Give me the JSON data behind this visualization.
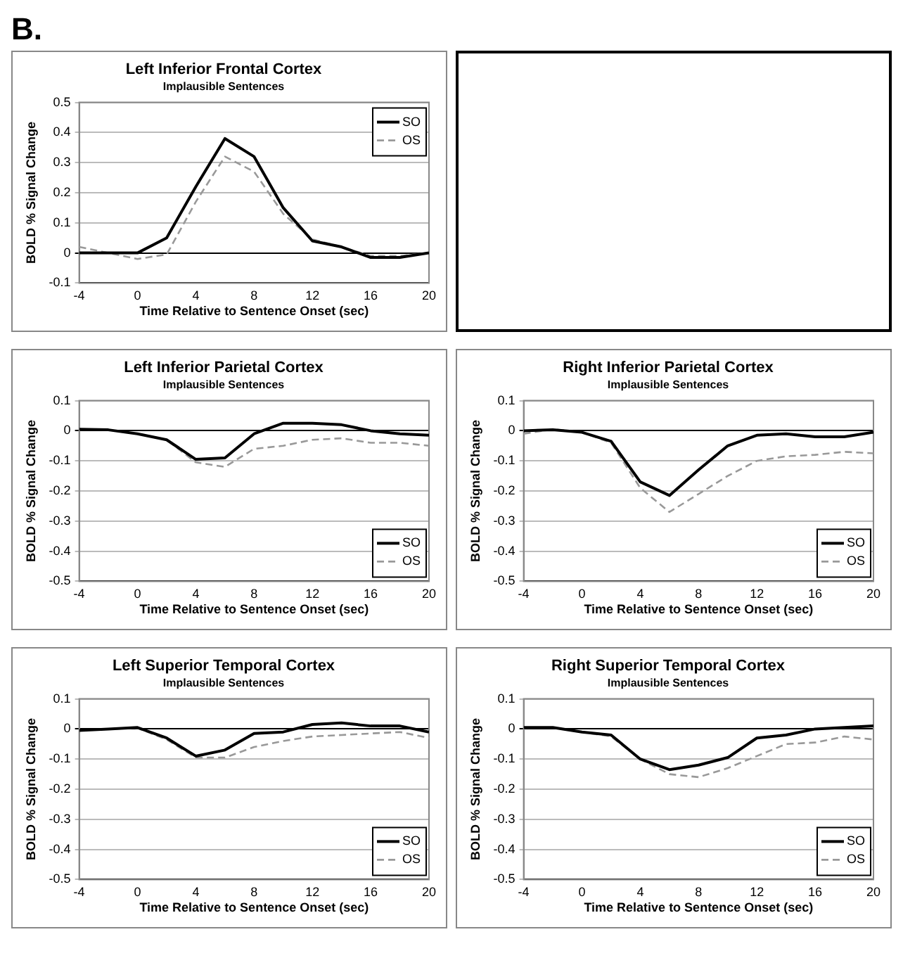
{
  "chart_data": [
    {
      "type": "line",
      "title": "Left Inferior Frontal Cortex",
      "subtitle": "Implausible Sentences",
      "xlabel": "Time Relative to Sentence Onset (sec)",
      "ylabel": "BOLD % Signal Change",
      "annotations": [
        "B."
      ],
      "x": [
        -4,
        -2,
        0,
        2,
        4,
        6,
        8,
        10,
        12,
        14,
        16,
        18,
        20
      ],
      "xlim": [
        -4,
        20
      ],
      "xticks": [
        -4,
        0,
        4,
        8,
        12,
        16,
        20
      ],
      "ylim": [
        -0.1,
        0.5
      ],
      "yticks": [
        -0.1,
        0,
        0.1,
        0.2,
        0.3,
        0.4,
        0.5
      ],
      "grid": "y",
      "legend": "top right",
      "marker": "none",
      "series": [
        {
          "name": "SO",
          "color": "#000000",
          "line_style": "solid",
          "values": [
            0,
            0,
            0,
            0.05,
            0.22,
            0.38,
            0.32,
            0.15,
            0.04,
            0.02,
            -0.015,
            -0.015,
            0
          ]
        },
        {
          "name": "OS",
          "color": "#999999",
          "line_style": "dashed",
          "values": [
            0.02,
            0,
            -0.02,
            -0.005,
            0.17,
            0.32,
            0.27,
            0.13,
            0.045,
            0.02,
            -0.01,
            -0.01,
            0
          ]
        }
      ]
    },
    {
      "type": "line",
      "title": "Left Inferior Parietal Cortex",
      "subtitle": "Implausible Sentences",
      "xlabel": "Time Relative to Sentence Onset (sec)",
      "ylabel": "BOLD % Signal Change",
      "x": [
        -4,
        -2,
        0,
        2,
        4,
        6,
        8,
        10,
        12,
        14,
        16,
        18,
        20
      ],
      "xlim": [
        -4,
        20
      ],
      "xticks": [
        -4,
        0,
        4,
        8,
        12,
        16,
        20
      ],
      "ylim": [
        -0.5,
        0.1
      ],
      "yticks": [
        -0.5,
        -0.4,
        -0.3,
        -0.2,
        -0.1,
        0,
        0.1
      ],
      "grid": "y",
      "legend": "bottom right",
      "marker": "none",
      "series": [
        {
          "name": "SO",
          "color": "#000000",
          "line_style": "solid",
          "values": [
            0.005,
            0.003,
            -0.01,
            -0.03,
            -0.095,
            -0.09,
            -0.01,
            0.025,
            0.025,
            0.02,
            0,
            -0.01,
            -0.015
          ]
        },
        {
          "name": "OS",
          "color": "#999999",
          "line_style": "dashed",
          "values": [
            0.005,
            0.003,
            -0.01,
            -0.03,
            -0.105,
            -0.12,
            -0.06,
            -0.05,
            -0.03,
            -0.025,
            -0.04,
            -0.04,
            -0.05
          ]
        }
      ]
    },
    {
      "type": "line",
      "title": "Right Inferior Parietal Cortex",
      "subtitle": "Implausible Sentences",
      "xlabel": "Time Relative to Sentence Onset (sec)",
      "ylabel": "BOLD % Signal Change",
      "x": [
        -4,
        -2,
        0,
        2,
        4,
        6,
        8,
        10,
        12,
        14,
        16,
        18,
        20
      ],
      "xlim": [
        -4,
        20
      ],
      "xticks": [
        -4,
        0,
        4,
        8,
        12,
        16,
        20
      ],
      "ylim": [
        -0.5,
        0.1
      ],
      "yticks": [
        -0.5,
        -0.4,
        -0.3,
        -0.2,
        -0.1,
        0,
        0.1
      ],
      "grid": "y",
      "legend": "bottom right",
      "marker": "none",
      "series": [
        {
          "name": "SO",
          "color": "#000000",
          "line_style": "solid",
          "values": [
            0,
            0.003,
            -0.005,
            -0.035,
            -0.17,
            -0.215,
            -0.13,
            -0.05,
            -0.015,
            -0.01,
            -0.02,
            -0.02,
            -0.005
          ]
        },
        {
          "name": "OS",
          "color": "#999999",
          "line_style": "dashed",
          "values": [
            -0.01,
            0.005,
            -0.005,
            -0.04,
            -0.19,
            -0.27,
            -0.21,
            -0.15,
            -0.1,
            -0.085,
            -0.08,
            -0.07,
            -0.075
          ]
        }
      ]
    },
    {
      "type": "line",
      "title": "Left Superior Temporal Cortex",
      "subtitle": "Implausible Sentences",
      "xlabel": "Time Relative to Sentence Onset (sec)",
      "ylabel": "BOLD % Signal Change",
      "x": [
        -4,
        -2,
        0,
        2,
        4,
        6,
        8,
        10,
        12,
        14,
        16,
        18,
        20
      ],
      "xlim": [
        -4,
        20
      ],
      "xticks": [
        -4,
        0,
        4,
        8,
        12,
        16,
        20
      ],
      "ylim": [
        -0.5,
        0.1
      ],
      "yticks": [
        -0.5,
        -0.4,
        -0.3,
        -0.2,
        -0.1,
        0,
        0.1
      ],
      "grid": "y",
      "legend": "bottom right",
      "marker": "none",
      "series": [
        {
          "name": "SO",
          "color": "#000000",
          "line_style": "solid",
          "values": [
            -0.005,
            0,
            0.005,
            -0.03,
            -0.09,
            -0.07,
            -0.015,
            -0.01,
            0.015,
            0.02,
            0.01,
            0.01,
            -0.01
          ]
        },
        {
          "name": "OS",
          "color": "#999999",
          "line_style": "dashed",
          "values": [
            -0.005,
            0,
            0.003,
            -0.035,
            -0.095,
            -0.095,
            -0.06,
            -0.04,
            -0.025,
            -0.02,
            -0.015,
            -0.01,
            -0.03
          ]
        }
      ]
    },
    {
      "type": "line",
      "title": "Right Superior Temporal Cortex",
      "subtitle": "Implausible Sentences",
      "xlabel": "Time Relative to Sentence Onset (sec)",
      "ylabel": "BOLD % Signal Change",
      "x": [
        -4,
        -2,
        0,
        2,
        4,
        6,
        8,
        10,
        12,
        14,
        16,
        18,
        20
      ],
      "xlim": [
        -4,
        20
      ],
      "xticks": [
        -4,
        0,
        4,
        8,
        12,
        16,
        20
      ],
      "ylim": [
        -0.5,
        0.1
      ],
      "yticks": [
        -0.5,
        -0.4,
        -0.3,
        -0.2,
        -0.1,
        0,
        0.1
      ],
      "grid": "y",
      "legend": "bottom right",
      "marker": "none",
      "series": [
        {
          "name": "SO",
          "color": "#000000",
          "line_style": "solid",
          "values": [
            0.005,
            0.005,
            -0.01,
            -0.02,
            -0.1,
            -0.135,
            -0.12,
            -0.095,
            -0.03,
            -0.02,
            0,
            0.005,
            0.01
          ]
        },
        {
          "name": "OS",
          "color": "#999999",
          "line_style": "dashed",
          "values": [
            0.005,
            0.005,
            -0.01,
            -0.025,
            -0.1,
            -0.15,
            -0.16,
            -0.13,
            -0.09,
            -0.05,
            -0.045,
            -0.025,
            -0.035
          ]
        }
      ]
    }
  ]
}
